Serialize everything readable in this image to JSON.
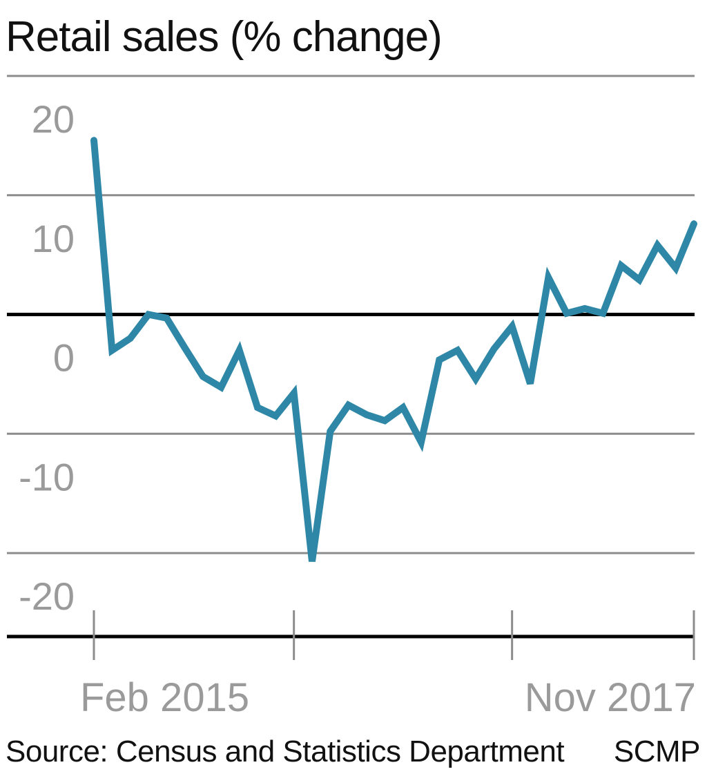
{
  "chart_data": {
    "type": "line",
    "title": "Retail sales (% change)",
    "xlabel": "",
    "ylabel": "",
    "ylim": [
      -27,
      20
    ],
    "yticks": [
      20,
      10,
      0,
      -10,
      -20
    ],
    "x_tick_labels": [
      "Feb 2015",
      "Nov 2017"
    ],
    "x_start": "Feb 2015",
    "x_end": "Nov 2017",
    "grid": true,
    "series": [
      {
        "name": "Retail sales",
        "color": "#2e87a6",
        "values": [
          14.6,
          -3,
          -2,
          0,
          -0.3,
          -2.8,
          -5.2,
          -6.1,
          -3,
          -7.8,
          -8.5,
          -6.6,
          -20.7,
          -9.8,
          -7.6,
          -8.4,
          -8.9,
          -7.8,
          -10.7,
          -3.8,
          -3,
          -5.4,
          -2.9,
          -1,
          -5.8,
          3.1,
          0.1,
          0.5,
          0.1,
          4.1,
          2.9,
          5.8,
          3.9,
          7.6
        ]
      }
    ]
  },
  "footer": {
    "source": "Source: Census and Statistics Department",
    "credit": "SCMP"
  }
}
